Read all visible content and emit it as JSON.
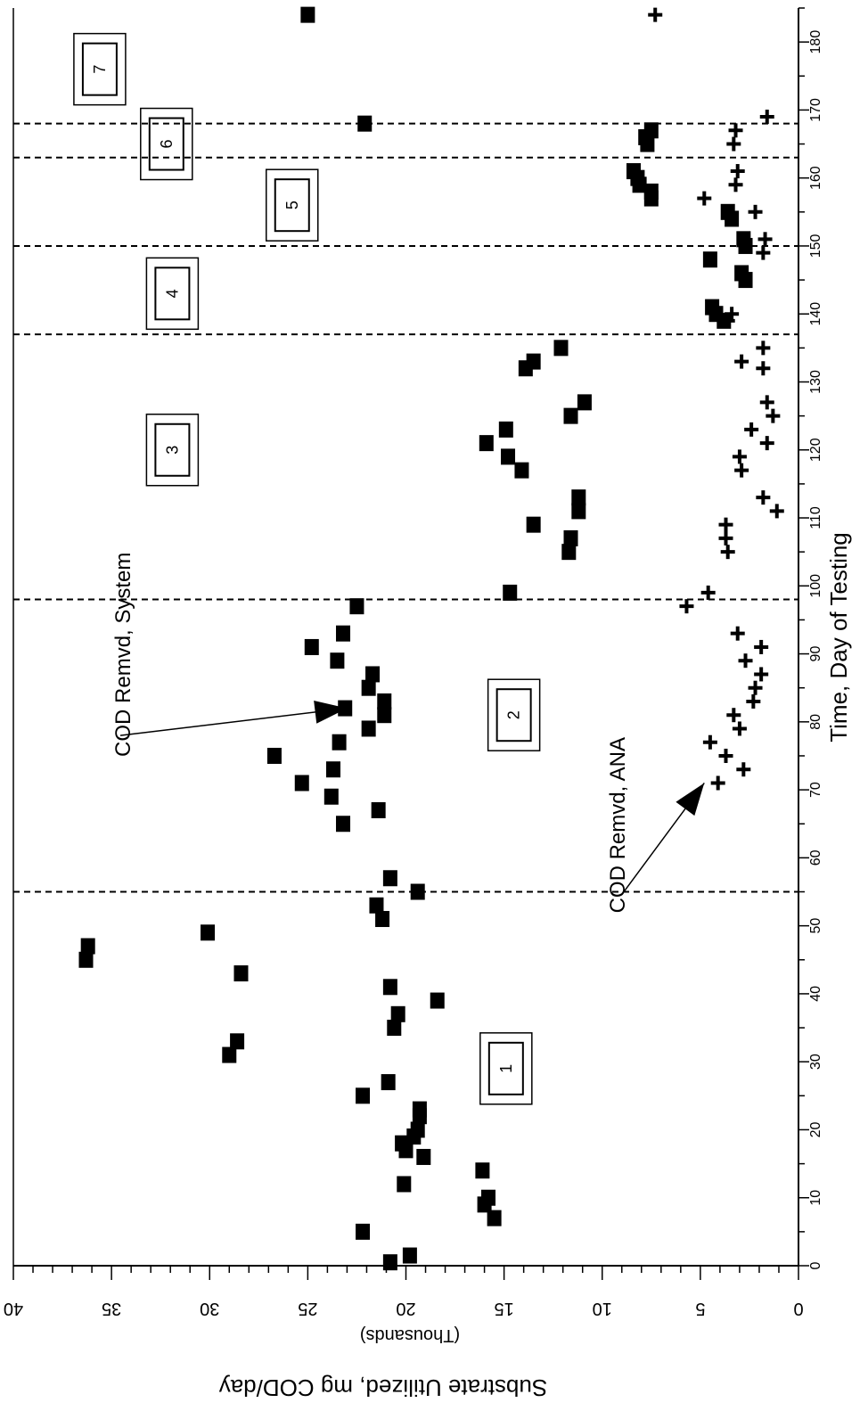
{
  "chart_data": {
    "type": "scatter",
    "orientation": "rotated 90 degrees clockwise (time axis runs down the right side)",
    "title": "",
    "xlabel": "Time, Day of Testing",
    "ylabel": "Substrate Utilized, mg COD/day",
    "ylabel_units_note": "(Thousands)",
    "xlim": [
      0,
      185
    ],
    "ylim": [
      0,
      40
    ],
    "x_ticks": [
      0,
      10,
      20,
      30,
      40,
      50,
      60,
      70,
      80,
      90,
      100,
      110,
      120,
      130,
      140,
      150,
      160,
      170,
      180
    ],
    "y_ticks": [
      0,
      5,
      10,
      15,
      20,
      25,
      30,
      35,
      40
    ],
    "grid": false,
    "legend": "none",
    "phase_boundaries": [
      55,
      98,
      137,
      150,
      163,
      168
    ],
    "phase_labels": [
      {
        "label": "1",
        "x": 29,
        "y": 14.9
      },
      {
        "label": "2",
        "x": 81,
        "y": 14.5
      },
      {
        "label": "3",
        "x": 120,
        "y": 31.9
      },
      {
        "label": "4",
        "x": 143,
        "y": 31.9
      },
      {
        "label": "5",
        "x": 156,
        "y": 25.8
      },
      {
        "label": "6",
        "x": 165,
        "y": 32.2
      },
      {
        "label": "7",
        "x": 176,
        "y": 35.6
      }
    ],
    "annotations": [
      {
        "text": "COD Remvd, System",
        "x": 75,
        "y": 34.5,
        "arrow_to": [
          82,
          23
        ]
      },
      {
        "text": "COD Remvd, ANA",
        "x": 52,
        "y": 9.3,
        "arrow_to": [
          71,
          4.8
        ]
      }
    ],
    "series": [
      {
        "name": "COD Remvd, System",
        "marker": "square",
        "points": [
          [
            0.5,
            20.8
          ],
          [
            1.5,
            19.8
          ],
          [
            5,
            22.2
          ],
          [
            7,
            15.5
          ],
          [
            9,
            16
          ],
          [
            10,
            15.8
          ],
          [
            12,
            20.1
          ],
          [
            14,
            16.1
          ],
          [
            16,
            19.1
          ],
          [
            17,
            20
          ],
          [
            18,
            20.2
          ],
          [
            19,
            19.6
          ],
          [
            20,
            19.4
          ],
          [
            22,
            19.3
          ],
          [
            23,
            19.3
          ],
          [
            25,
            22.2
          ],
          [
            27,
            20.9
          ],
          [
            31,
            29
          ],
          [
            33,
            28.6
          ],
          [
            35,
            20.6
          ],
          [
            37,
            20.4
          ],
          [
            39,
            18.4
          ],
          [
            41,
            20.8
          ],
          [
            43,
            28.4
          ],
          [
            45,
            36.3
          ],
          [
            47,
            36.2
          ],
          [
            49,
            30.1
          ],
          [
            51,
            21.2
          ],
          [
            53,
            21.5
          ],
          [
            55,
            19.4
          ],
          [
            57,
            20.8
          ],
          [
            65,
            23.2
          ],
          [
            67,
            21.4
          ],
          [
            69,
            23.8
          ],
          [
            71,
            25.3
          ],
          [
            73,
            23.7
          ],
          [
            75,
            26.7
          ],
          [
            77,
            23.4
          ],
          [
            79,
            21.9
          ],
          [
            81,
            21.1
          ],
          [
            82,
            23.1
          ],
          [
            83,
            21.1
          ],
          [
            85,
            21.9
          ],
          [
            87,
            21.7
          ],
          [
            89,
            23.5
          ],
          [
            91,
            24.8
          ],
          [
            93,
            23.2
          ],
          [
            97,
            22.5
          ],
          [
            99,
            14.7
          ],
          [
            105,
            11.7
          ],
          [
            107,
            11.6
          ],
          [
            109,
            13.5
          ],
          [
            111,
            11.2
          ],
          [
            113,
            11.2
          ],
          [
            117,
            14.1
          ],
          [
            119,
            14.8
          ],
          [
            121,
            15.9
          ],
          [
            123,
            14.9
          ],
          [
            125,
            11.6
          ],
          [
            127,
            10.9
          ],
          [
            132,
            13.9
          ],
          [
            133,
            13.5
          ],
          [
            135,
            12.1
          ],
          [
            139,
            3.8
          ],
          [
            140,
            4.2
          ],
          [
            141,
            4.4
          ],
          [
            145,
            2.7
          ],
          [
            146,
            2.9
          ],
          [
            148,
            4.5
          ],
          [
            150,
            2.7
          ],
          [
            151,
            2.8
          ],
          [
            154,
            3.4
          ],
          [
            155,
            3.6
          ],
          [
            157,
            7.5
          ],
          [
            158,
            7.5
          ],
          [
            159,
            8.1
          ],
          [
            160,
            8.2
          ],
          [
            161,
            8.4
          ],
          [
            165,
            7.7
          ],
          [
            166,
            7.8
          ],
          [
            167,
            7.5
          ],
          [
            168,
            22.1
          ],
          [
            184,
            25
          ]
        ]
      },
      {
        "name": "COD Remvd, ANA",
        "marker": "plus",
        "points": [
          [
            71,
            4.1
          ],
          [
            73,
            2.8
          ],
          [
            75,
            3.7
          ],
          [
            77,
            4.5
          ],
          [
            79,
            3.0
          ],
          [
            81,
            3.3
          ],
          [
            83,
            2.3
          ],
          [
            85,
            2.2
          ],
          [
            87,
            1.9
          ],
          [
            89,
            2.7
          ],
          [
            91,
            1.9
          ],
          [
            93,
            3.1
          ],
          [
            97,
            5.7
          ],
          [
            99,
            4.6
          ],
          [
            105,
            3.6
          ],
          [
            107,
            3.7
          ],
          [
            109,
            3.7
          ],
          [
            111,
            1.1
          ],
          [
            113,
            1.8
          ],
          [
            117,
            2.9
          ],
          [
            119,
            3.0
          ],
          [
            121,
            1.6
          ],
          [
            123,
            2.4
          ],
          [
            125,
            1.3
          ],
          [
            127,
            1.6
          ],
          [
            132,
            1.8
          ],
          [
            133,
            2.9
          ],
          [
            135,
            1.8
          ],
          [
            139,
            3.6
          ],
          [
            140,
            3.4
          ],
          [
            149,
            1.8
          ],
          [
            151,
            1.7
          ],
          [
            155,
            2.2
          ],
          [
            157,
            4.8
          ],
          [
            159,
            3.2
          ],
          [
            161,
            3.1
          ],
          [
            165,
            3.3
          ],
          [
            167,
            3.2
          ],
          [
            169,
            1.6
          ],
          [
            184,
            7.3
          ]
        ]
      }
    ]
  }
}
